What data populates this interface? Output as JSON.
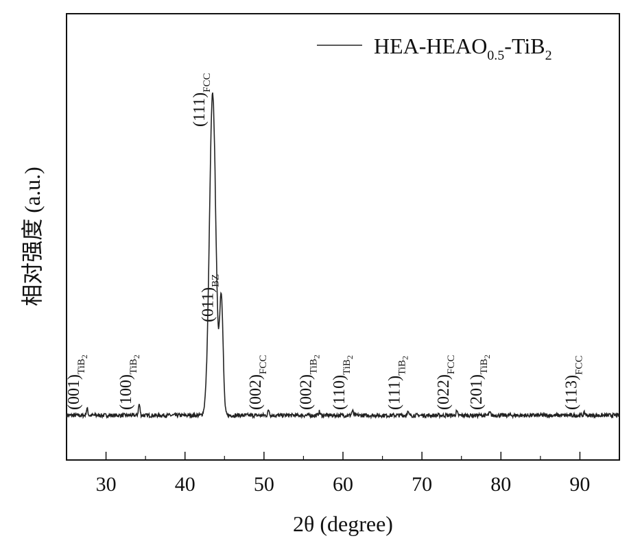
{
  "chart_data": {
    "type": "line",
    "title": "",
    "xlabel": "2θ (degree)",
    "ylabel": "相对强度 (a.u.)",
    "xlim": [
      25,
      95
    ],
    "ylim": [
      0,
      1
    ],
    "x_ticks": [
      30,
      40,
      50,
      60,
      70,
      80,
      90
    ],
    "y_ticks_shown": false,
    "grid": false,
    "legend": {
      "placement": "top-right",
      "entries": [
        "HEA-HEAO0.5-TiB2"
      ]
    },
    "series": [
      {
        "name": "HEA-HEAO0.5-TiB2",
        "baseline": 0.1,
        "peaks": [
          {
            "x": 27.6,
            "y": 0.115
          },
          {
            "x": 34.2,
            "y": 0.125
          },
          {
            "x": 43.5,
            "y": 0.82
          },
          {
            "x": 44.6,
            "y": 0.36
          },
          {
            "x": 50.6,
            "y": 0.112
          },
          {
            "x": 57.0,
            "y": 0.108
          },
          {
            "x": 61.2,
            "y": 0.11
          },
          {
            "x": 68.2,
            "y": 0.108
          },
          {
            "x": 74.4,
            "y": 0.108
          },
          {
            "x": 78.6,
            "y": 0.106
          },
          {
            "x": 90.6,
            "y": 0.106
          }
        ]
      }
    ],
    "annotations": [
      {
        "x": 27.6,
        "main": "(001)",
        "sub": "TiB2"
      },
      {
        "x": 34.2,
        "main": "(100)",
        "sub": "TiB2"
      },
      {
        "x": 43.5,
        "main": "(111)",
        "sub": "FCC"
      },
      {
        "x": 44.6,
        "main": "(011)",
        "sub": "BZ"
      },
      {
        "x": 50.6,
        "main": "(002)",
        "sub": "FCC"
      },
      {
        "x": 57.0,
        "main": "(002)",
        "sub": "TiB2"
      },
      {
        "x": 61.2,
        "main": "(110)",
        "sub": "TiB2"
      },
      {
        "x": 68.2,
        "main": "(111)",
        "sub": "TiB2"
      },
      {
        "x": 74.4,
        "main": "(022)",
        "sub": "FCC"
      },
      {
        "x": 78.6,
        "main": "(201)",
        "sub": "TiB2"
      },
      {
        "x": 90.6,
        "main": "(113)",
        "sub": "FCC"
      }
    ],
    "colors": {
      "line": "#222222",
      "axes": "#111111"
    }
  }
}
